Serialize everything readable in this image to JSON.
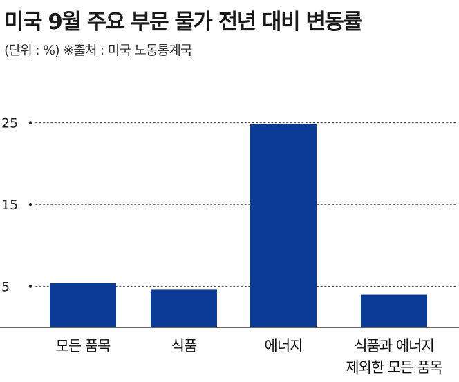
{
  "header": {
    "title": "미국 9월 주요 부문 물가 전년 대비 변동률",
    "subtitle": "(단위 : %)  ※출처 : 미국 노동통계국"
  },
  "chart_data": {
    "type": "bar",
    "title": "미국 9월 주요 부문 물가 전년 대비 변동률",
    "unit": "%",
    "source": "미국 노동통계국",
    "categories": [
      [
        "모든 품목"
      ],
      [
        "식품"
      ],
      [
        "에너지"
      ],
      [
        "식품과 에너지",
        "제외한 모든 품목"
      ]
    ],
    "values": [
      5.4,
      4.6,
      24.8,
      4.0
    ],
    "yticks": [
      5,
      15,
      25
    ],
    "ylim": [
      0,
      29
    ],
    "grid": true,
    "bar_color": "#0a3a96",
    "grid_color": "#555555"
  }
}
